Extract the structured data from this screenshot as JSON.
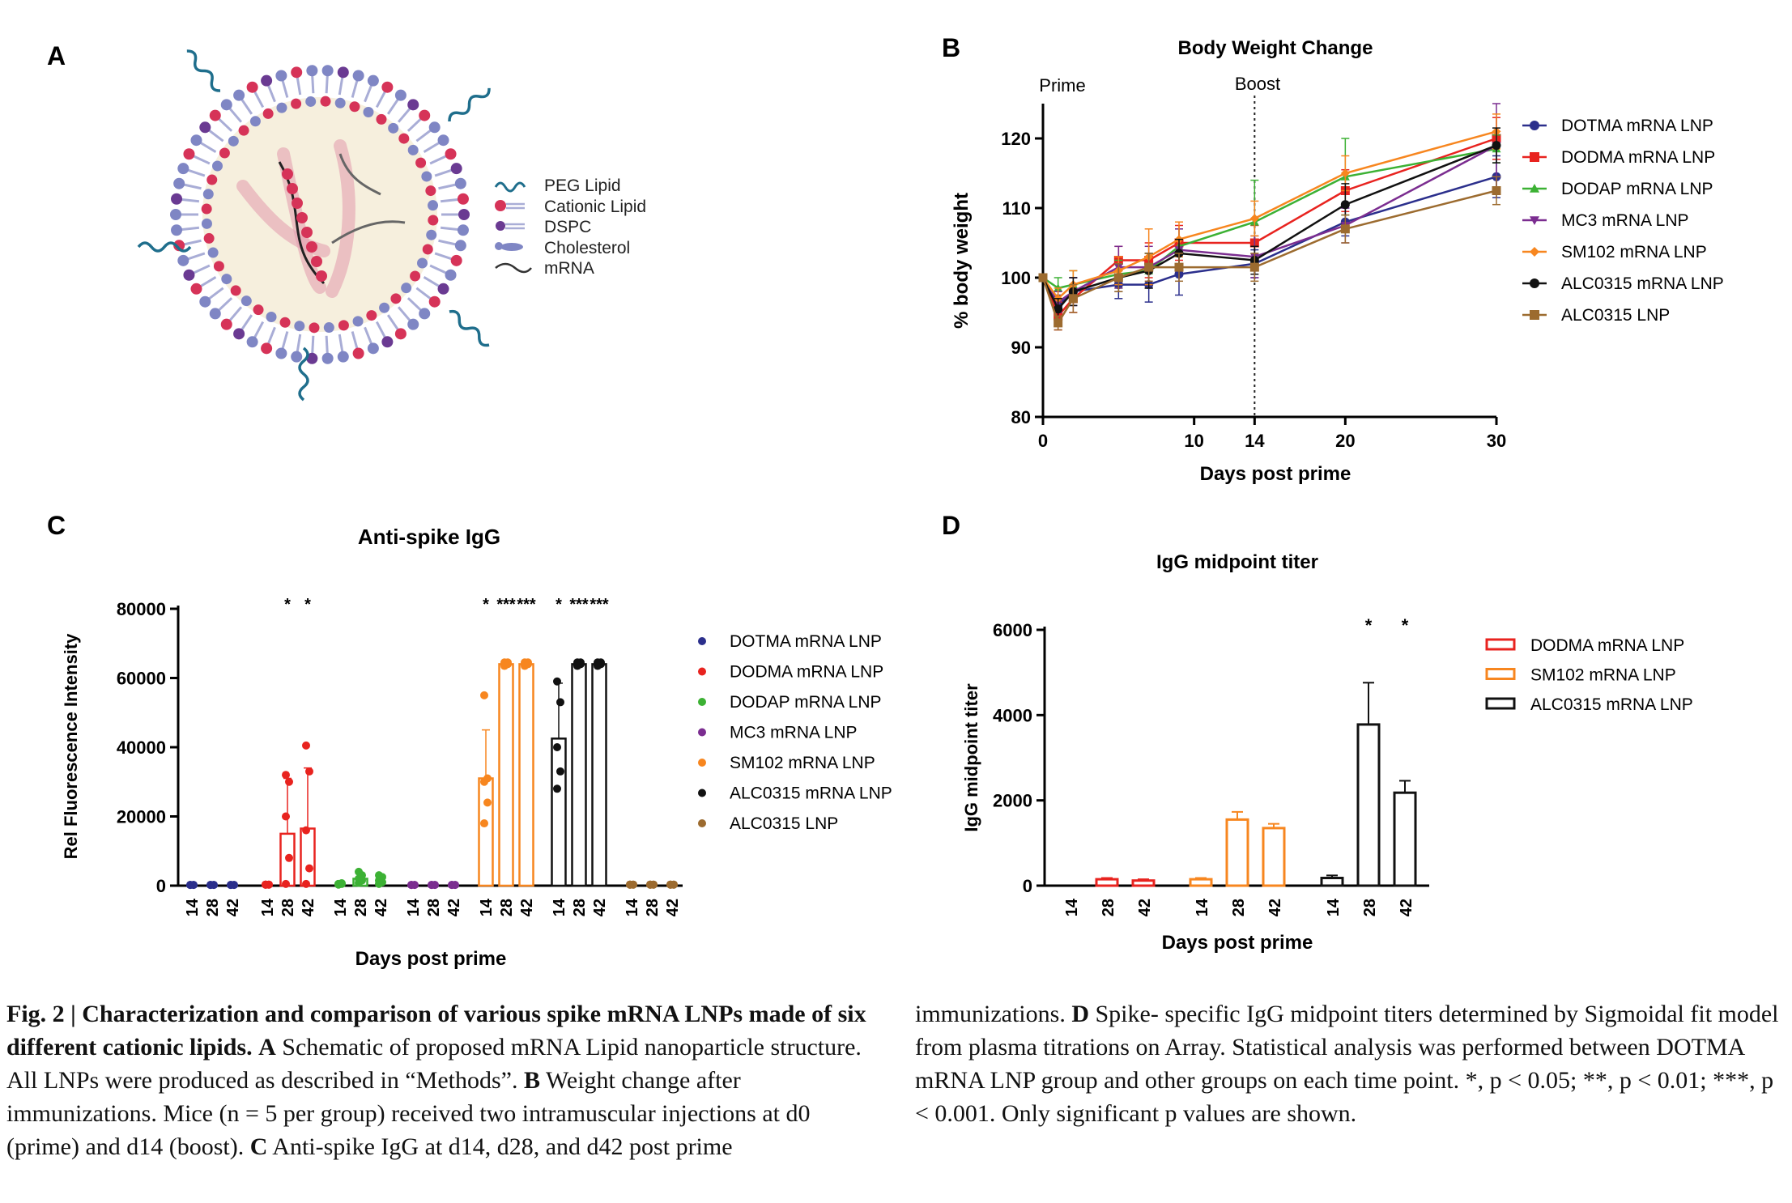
{
  "panels": {
    "a": {
      "letter": "A",
      "legend": [
        "PEG Lipid",
        "Cationic Lipid",
        "DSPC",
        "Cholesterol",
        "mRNA"
      ]
    },
    "b": {
      "letter": "B"
    },
    "c": {
      "letter": "C"
    },
    "d": {
      "letter": "D"
    }
  },
  "colors": {
    "DOTMA": "#2b2f8c",
    "DODMA": "#e8231f",
    "DODAP": "#3cb134",
    "MC3": "#7b2d90",
    "SM102": "#f7861f",
    "ALC0315": "#111111",
    "ALC0315LNP": "#9c6b2f",
    "lipid_head_blue": "#7f86c4",
    "lipid_head_red": "#d63358",
    "lipid_head_purple": "#6a3a92",
    "peg": "#1f6e8c"
  },
  "chart_data": [
    {
      "id": "B",
      "type": "line",
      "title": "Body Weight Change",
      "xlabel": "Days post prime",
      "ylabel": "% body weight",
      "xlim": [
        0,
        30
      ],
      "ylim": [
        80,
        125
      ],
      "xticks": [
        0,
        10,
        14,
        20,
        30
      ],
      "yticks": [
        80,
        90,
        100,
        110,
        120
      ],
      "annotations": [
        {
          "text": "Prime",
          "x": 0
        },
        {
          "text": "Boost",
          "x": 14
        }
      ],
      "x": [
        0,
        1,
        2,
        5,
        7,
        9,
        14,
        20,
        30
      ],
      "series": [
        {
          "name": "DOTMA mRNA LNP",
          "color_key": "DOTMA",
          "marker": "circle",
          "values": [
            100,
            96,
            98,
            99,
            99,
            100.5,
            102,
            108,
            114.5
          ],
          "err": [
            0.5,
            1.5,
            2,
            2,
            2.5,
            3,
            2,
            2,
            3
          ]
        },
        {
          "name": "DODMA mRNA LNP",
          "color_key": "DODMA",
          "marker": "square",
          "values": [
            100,
            94.5,
            97,
            102.5,
            102.5,
            105,
            105,
            112.5,
            120
          ],
          "err": [
            0.5,
            2,
            2,
            2,
            2.5,
            2.5,
            2.5,
            3,
            3
          ]
        },
        {
          "name": "DODAP mRNA LNP",
          "color_key": "DODAP",
          "marker": "triangle",
          "values": [
            100,
            98.5,
            99,
            100.5,
            101,
            104.5,
            108,
            114.5,
            118.5
          ],
          "err": [
            0.5,
            1.5,
            2,
            2,
            2.5,
            2.5,
            6,
            5.5,
            2
          ]
        },
        {
          "name": "MC3 mRNA LNP",
          "color_key": "MC3",
          "marker": "triangle-down",
          "values": [
            100,
            96.5,
            98,
            101.5,
            101.5,
            104,
            103,
            107.5,
            119
          ],
          "err": [
            0.5,
            1.5,
            2,
            3,
            3,
            3,
            3,
            2.5,
            6
          ]
        },
        {
          "name": "SM102 mRNA LNP",
          "color_key": "SM102",
          "marker": "diamond",
          "values": [
            100,
            97,
            99,
            101,
            103,
            105.5,
            108.5,
            115,
            121
          ],
          "err": [
            0.5,
            1.5,
            2,
            2,
            4,
            2.5,
            2.5,
            2.5,
            2.5
          ]
        },
        {
          "name": "ALC0315 mRNA LNP",
          "color_key": "ALC0315",
          "marker": "circle",
          "values": [
            100,
            95.5,
            98,
            100,
            101,
            103.5,
            102.5,
            110.5,
            119
          ],
          "err": [
            0.5,
            1.5,
            2,
            2,
            2.5,
            2,
            2,
            3,
            2.5
          ]
        },
        {
          "name": "ALC0315 LNP",
          "color_key": "ALC0315LNP",
          "marker": "square",
          "values": [
            100,
            93.5,
            97,
            100,
            101.5,
            101.5,
            101.5,
            107,
            112.5
          ],
          "err": [
            0.5,
            1,
            2,
            2,
            2,
            2,
            2,
            2,
            2
          ]
        }
      ]
    },
    {
      "id": "C",
      "type": "bar",
      "title": "Anti-spike IgG",
      "xlabel": "Days post prime",
      "ylabel": "Rel Fluorescence Intensity",
      "ylim": [
        0,
        80000
      ],
      "yticks": [
        0,
        20000,
        40000,
        60000,
        80000
      ],
      "yticklabels": [
        "0",
        "20000",
        "40000",
        "60000",
        "80000"
      ],
      "categories": [
        "14",
        "28",
        "42"
      ],
      "series": [
        {
          "name": "DOTMA mRNA LNP",
          "color_key": "DOTMA",
          "values": [
            200,
            200,
            200
          ],
          "err": [
            0,
            0,
            0
          ],
          "points": [
            [
              200,
              200,
              200,
              200,
              200
            ],
            [
              200,
              200,
              200,
              200,
              200
            ],
            [
              200,
              200,
              200,
              200,
              200
            ]
          ],
          "sig": [
            "",
            "",
            ""
          ]
        },
        {
          "name": "DODMA mRNA LNP",
          "color_key": "DODMA",
          "values": [
            300,
            15000,
            16500
          ],
          "err": [
            0,
            16000,
            17500
          ],
          "points": [
            [
              300,
              300,
              300,
              300,
              300
            ],
            [
              500,
              8000,
              20000,
              30000,
              32000
            ],
            [
              500,
              5000,
              16000,
              33000,
              40500
            ]
          ],
          "sig": [
            "",
            "*",
            "*"
          ]
        },
        {
          "name": "DODAP mRNA LNP",
          "color_key": "DODAP",
          "values": [
            500,
            2000,
            1500
          ],
          "err": [
            0,
            1500,
            1000
          ],
          "points": [
            [
              300,
              500,
              500,
              700,
              500
            ],
            [
              800,
              1500,
              2000,
              3000,
              4000
            ],
            [
              500,
              1000,
              1500,
              2500,
              3000
            ]
          ],
          "sig": [
            "",
            "",
            ""
          ]
        },
        {
          "name": "MC3 mRNA LNP",
          "color_key": "MC3",
          "values": [
            200,
            200,
            200
          ],
          "err": [
            0,
            0,
            0
          ],
          "points": [
            [
              200,
              200,
              200,
              200,
              200
            ],
            [
              200,
              200,
              200,
              200,
              200
            ],
            [
              200,
              200,
              200,
              200,
              200
            ]
          ],
          "sig": [
            "",
            "",
            ""
          ]
        },
        {
          "name": "SM102 mRNA LNP",
          "color_key": "SM102",
          "values": [
            31000,
            64000,
            64000
          ],
          "err": [
            14000,
            500,
            500
          ],
          "points": [
            [
              18000,
              24000,
              30000,
              31000,
              55000
            ],
            [
              63500,
              64000,
              64000,
              64500,
              64500
            ],
            [
              63500,
              64000,
              64000,
              64500,
              64500
            ]
          ],
          "sig": [
            "*",
            "***",
            "***"
          ]
        },
        {
          "name": "ALC0315 mRNA LNP",
          "color_key": "ALC0315",
          "values": [
            42500,
            64000,
            64000
          ],
          "err": [
            16000,
            500,
            500
          ],
          "points": [
            [
              28000,
              33000,
              40000,
              53000,
              59000
            ],
            [
              63500,
              64000,
              64000,
              64500,
              64500
            ],
            [
              63500,
              64000,
              64000,
              64500,
              64500
            ]
          ],
          "sig": [
            "*",
            "***",
            "***"
          ]
        },
        {
          "name": "ALC0315 LNP",
          "color_key": "ALC0315LNP",
          "values": [
            300,
            300,
            300
          ],
          "err": [
            0,
            0,
            0
          ],
          "points": [
            [
              300,
              300,
              300,
              300,
              300
            ],
            [
              300,
              300,
              300,
              300,
              300
            ],
            [
              300,
              300,
              300,
              300,
              300
            ]
          ],
          "sig": [
            "",
            "",
            ""
          ]
        }
      ]
    },
    {
      "id": "D",
      "type": "bar",
      "title": "IgG midpoint titer",
      "xlabel": "Days post prime",
      "ylabel": "IgG midpoint titer",
      "ylim": [
        0,
        6000
      ],
      "yticks": [
        0,
        2000,
        4000,
        6000
      ],
      "categories": [
        "14",
        "28",
        "42"
      ],
      "series": [
        {
          "name": "DODMA mRNA LNP",
          "color_key": "DODMA",
          "values": [
            0,
            150,
            120
          ],
          "err": [
            0,
            30,
            30
          ],
          "sig": [
            "",
            "",
            ""
          ]
        },
        {
          "name": "SM102 mRNA LNP",
          "color_key": "SM102",
          "values": [
            150,
            1550,
            1350
          ],
          "err": [
            30,
            180,
            100
          ],
          "sig": [
            "",
            "",
            ""
          ]
        },
        {
          "name": "ALC0315 mRNA LNP",
          "color_key": "ALC0315",
          "values": [
            180,
            3780,
            2180
          ],
          "err": [
            60,
            980,
            280
          ],
          "sig": [
            "",
            "*",
            "*"
          ]
        }
      ]
    }
  ],
  "caption": {
    "left": {
      "bold_lead": "Fig. 2 | Characterization and comparison of various spike mRNA LNPs made of six different cationic lipids.",
      "parts": [
        {
          "bold": "A",
          "text": " Schematic of proposed mRNA Lipid nanoparticle structure. All LNPs were produced as described in “Methods”. "
        },
        {
          "bold": "B",
          "text": " Weight change after immunizations. Mice (n = 5 per group) received two intramuscular injections at d0 (prime) and d14 (boost). "
        },
        {
          "bold": "C",
          "text": " Anti-spike IgG at d14, d28, and d42 post prime"
        }
      ]
    },
    "right": {
      "parts": [
        {
          "bold": "",
          "text": "immunizations. "
        },
        {
          "bold": "D",
          "text": " Spike- specific IgG midpoint titers determined by Sigmoidal fit model from plasma titrations on Array. Statistical analysis was performed between DOTMA mRNA LNP group and other groups on each time point. *, p < 0.05; **, p < 0.01; ***, p < 0.001. Only significant p values are shown."
        }
      ]
    }
  }
}
